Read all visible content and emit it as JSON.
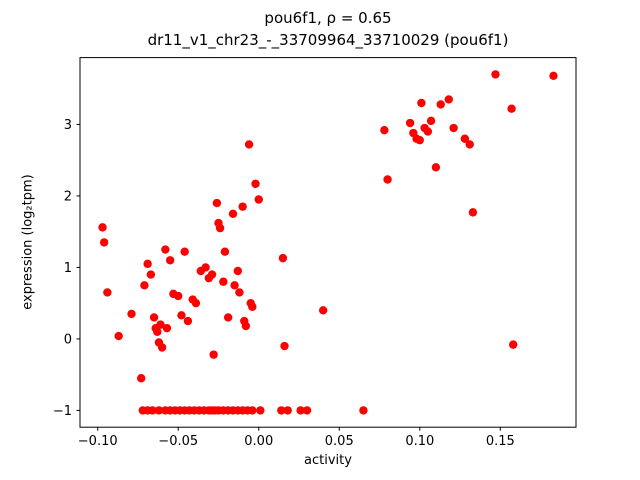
{
  "chart_data": {
    "type": "scatter",
    "title": "pou6f1, ρ = 0.65",
    "subtitle": "dr11_v1_chr23_-_33709964_33710029 (pou6f1)",
    "xlabel": "activity",
    "ylabel": "expression (log₂tpm)",
    "marker_color": "#ff0000",
    "grid": false,
    "legend": null,
    "xlim": [
      -0.111,
      0.197
    ],
    "ylim": [
      -1.235,
      3.935
    ],
    "xticks": {
      "values": [
        -0.1,
        -0.05,
        0.0,
        0.05,
        0.1,
        0.15
      ],
      "labels": [
        "−0.10",
        "−0.05",
        "0.00",
        "0.05",
        "0.10",
        "0.15"
      ]
    },
    "yticks": {
      "values": [
        -1,
        0,
        1,
        2,
        3
      ],
      "labels": [
        "−1",
        "0",
        "1",
        "2",
        "3"
      ]
    },
    "points": [
      [
        -0.072,
        -1
      ],
      [
        -0.069,
        -1
      ],
      [
        -0.066,
        -1
      ],
      [
        -0.062,
        -1
      ],
      [
        -0.058,
        -1
      ],
      [
        -0.055,
        -1
      ],
      [
        -0.052,
        -1
      ],
      [
        -0.049,
        -1
      ],
      [
        -0.046,
        -1
      ],
      [
        -0.043,
        -1
      ],
      [
        -0.04,
        -1
      ],
      [
        -0.037,
        -1
      ],
      [
        -0.034,
        -1
      ],
      [
        -0.031,
        -1
      ],
      [
        -0.029,
        -1
      ],
      [
        -0.027,
        -1
      ],
      [
        -0.025,
        -1
      ],
      [
        -0.022,
        -1
      ],
      [
        -0.019,
        -1
      ],
      [
        -0.016,
        -1
      ],
      [
        -0.013,
        -1
      ],
      [
        -0.01,
        -1
      ],
      [
        -0.007,
        -1
      ],
      [
        -0.004,
        -1
      ],
      [
        0.001,
        -1
      ],
      [
        0.014,
        -1
      ],
      [
        0.018,
        -1
      ],
      [
        0.026,
        -1
      ],
      [
        0.03,
        -1
      ],
      [
        0.065,
        -1
      ],
      [
        -0.097,
        1.56
      ],
      [
        -0.096,
        1.35
      ],
      [
        -0.094,
        0.65
      ],
      [
        -0.087,
        0.04
      ],
      [
        -0.079,
        0.35
      ],
      [
        -0.073,
        -0.55
      ],
      [
        -0.071,
        0.75
      ],
      [
        -0.069,
        1.05
      ],
      [
        -0.067,
        0.9
      ],
      [
        -0.065,
        0.3
      ],
      [
        -0.064,
        0.15
      ],
      [
        -0.063,
        0.1
      ],
      [
        -0.062,
        -0.05
      ],
      [
        -0.061,
        0.2
      ],
      [
        -0.06,
        -0.12
      ],
      [
        -0.058,
        1.25
      ],
      [
        -0.057,
        0.15
      ],
      [
        -0.055,
        1.1
      ],
      [
        -0.053,
        0.63
      ],
      [
        -0.05,
        0.6
      ],
      [
        -0.048,
        0.33
      ],
      [
        -0.046,
        1.22
      ],
      [
        -0.044,
        0.25
      ],
      [
        -0.041,
        0.55
      ],
      [
        -0.039,
        0.5
      ],
      [
        -0.036,
        0.95
      ],
      [
        -0.033,
        1.0
      ],
      [
        -0.031,
        0.85
      ],
      [
        -0.029,
        0.9
      ],
      [
        -0.028,
        -0.22
      ],
      [
        -0.026,
        1.9
      ],
      [
        -0.025,
        1.62
      ],
      [
        -0.024,
        1.55
      ],
      [
        -0.022,
        0.8
      ],
      [
        -0.021,
        1.22
      ],
      [
        -0.019,
        0.3
      ],
      [
        -0.016,
        1.75
      ],
      [
        -0.015,
        0.75
      ],
      [
        -0.013,
        0.95
      ],
      [
        -0.012,
        0.65
      ],
      [
        -0.01,
        1.85
      ],
      [
        -0.009,
        0.25
      ],
      [
        -0.008,
        0.18
      ],
      [
        -0.006,
        2.72
      ],
      [
        -0.005,
        0.5
      ],
      [
        -0.004,
        0.45
      ],
      [
        -0.002,
        2.17
      ],
      [
        0.0,
        1.95
      ],
      [
        0.015,
        1.13
      ],
      [
        0.016,
        -0.1
      ],
      [
        0.04,
        0.4
      ],
      [
        0.078,
        2.92
      ],
      [
        0.08,
        2.23
      ],
      [
        0.094,
        3.02
      ],
      [
        0.096,
        2.88
      ],
      [
        0.098,
        2.8
      ],
      [
        0.1,
        2.78
      ],
      [
        0.101,
        3.3
      ],
      [
        0.103,
        2.95
      ],
      [
        0.105,
        2.9
      ],
      [
        0.107,
        3.05
      ],
      [
        0.11,
        2.4
      ],
      [
        0.113,
        3.28
      ],
      [
        0.118,
        3.35
      ],
      [
        0.121,
        2.95
      ],
      [
        0.128,
        2.8
      ],
      [
        0.131,
        2.72
      ],
      [
        0.133,
        1.77
      ],
      [
        0.147,
        3.7
      ],
      [
        0.157,
        3.22
      ],
      [
        0.158,
        -0.08
      ],
      [
        0.183,
        3.68
      ]
    ]
  }
}
